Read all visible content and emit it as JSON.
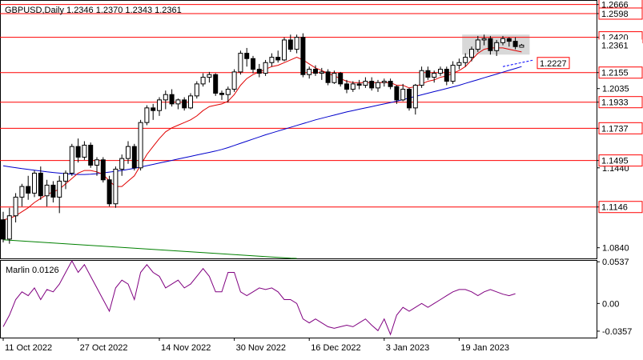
{
  "header": {
    "symbol_line": "GBPUSD,Daily  1.2346 1.2370 1.2343 1.2361",
    "oscillator_label": "Marlin 0.0126"
  },
  "colors": {
    "background": "#ffffff",
    "level_line": "#ff0000",
    "ma_fast": "#e00000",
    "ma_slow": "#0000cc",
    "ma_long": "#008000",
    "oscillator": "#800080",
    "candle_body": "#000000",
    "forecast_line": "#0000ff",
    "price_box": "#c8c8c8"
  },
  "chart_data": [
    {
      "type": "candlestick",
      "symbol": "GBPUSD",
      "timeframe": "Daily",
      "ylim": [
        1.076,
        1.27
      ],
      "y_ticks": [
        1.2666,
        1.2598,
        1.242,
        1.2361,
        1.2155,
        1.2035,
        1.1933,
        1.1737,
        1.1495,
        1.144,
        1.1146,
        1.084
      ],
      "x_labels": [
        "11 Oct 2022",
        "27 Oct 2022",
        "14 Nov 2022",
        "30 Nov 2022",
        "16 Dec 2022",
        "3 Jan 2023",
        "19 Jan 2023"
      ],
      "x_label_index": [
        0,
        12,
        25,
        37,
        49,
        61,
        73
      ],
      "levels": [
        1.2666,
        1.2598,
        1.242,
        1.2155,
        1.1933,
        1.1737,
        1.1495,
        1.1146
      ],
      "last_price": 1.2361,
      "forecast_label": "1.2227",
      "forecast_line": {
        "from_index": 80,
        "from_value": 1.22,
        "to_index": 85,
        "to_value": 1.225
      },
      "candles": [
        [
          1.105,
          1.111,
          1.088,
          1.0905
        ],
        [
          1.0905,
          1.114,
          1.087,
          1.108
        ],
        [
          1.108,
          1.125,
          1.103,
          1.122
        ],
        [
          1.122,
          1.132,
          1.115,
          1.13
        ],
        [
          1.13,
          1.138,
          1.12,
          1.125
        ],
        [
          1.125,
          1.142,
          1.122,
          1.14
        ],
        [
          1.14,
          1.145,
          1.12,
          1.123
        ],
        [
          1.123,
          1.135,
          1.115,
          1.131
        ],
        [
          1.131,
          1.134,
          1.118,
          1.122
        ],
        [
          1.122,
          1.138,
          1.11,
          1.134
        ],
        [
          1.134,
          1.142,
          1.128,
          1.14
        ],
        [
          1.14,
          1.162,
          1.138,
          1.16
        ],
        [
          1.16,
          1.166,
          1.148,
          1.152
        ],
        [
          1.152,
          1.164,
          1.15,
          1.161
        ],
        [
          1.161,
          1.163,
          1.144,
          1.146
        ],
        [
          1.146,
          1.152,
          1.138,
          1.15
        ],
        [
          1.15,
          1.152,
          1.133,
          1.135
        ],
        [
          1.135,
          1.138,
          1.115,
          1.117
        ],
        [
          1.117,
          1.145,
          1.114,
          1.143
        ],
        [
          1.143,
          1.154,
          1.138,
          1.151
        ],
        [
          1.151,
          1.164,
          1.147,
          1.16
        ],
        [
          1.16,
          1.162,
          1.142,
          1.144
        ],
        [
          1.144,
          1.18,
          1.142,
          1.178
        ],
        [
          1.178,
          1.191,
          1.176,
          1.189
        ],
        [
          1.189,
          1.192,
          1.18,
          1.187
        ],
        [
          1.187,
          1.197,
          1.183,
          1.195
        ],
        [
          1.195,
          1.202,
          1.188,
          1.199
        ],
        [
          1.199,
          1.203,
          1.19,
          1.192
        ],
        [
          1.192,
          1.196,
          1.188,
          1.195
        ],
        [
          1.195,
          1.197,
          1.187,
          1.189
        ],
        [
          1.189,
          1.2,
          1.188,
          1.198
        ],
        [
          1.198,
          1.209,
          1.196,
          1.207
        ],
        [
          1.207,
          1.215,
          1.205,
          1.212
        ],
        [
          1.212,
          1.216,
          1.208,
          1.214
        ],
        [
          1.214,
          1.215,
          1.198,
          1.2
        ],
        [
          1.2,
          1.202,
          1.195,
          1.199
        ],
        [
          1.199,
          1.205,
          1.193,
          1.203
        ],
        [
          1.203,
          1.218,
          1.201,
          1.216
        ],
        [
          1.216,
          1.232,
          1.214,
          1.23
        ],
        [
          1.23,
          1.234,
          1.22,
          1.226
        ],
        [
          1.226,
          1.228,
          1.215,
          1.218
        ],
        [
          1.218,
          1.222,
          1.212,
          1.215
        ],
        [
          1.215,
          1.225,
          1.213,
          1.223
        ],
        [
          1.223,
          1.23,
          1.22,
          1.227
        ],
        [
          1.227,
          1.232,
          1.223,
          1.225
        ],
        [
          1.225,
          1.242,
          1.224,
          1.24
        ],
        [
          1.24,
          1.244,
          1.231,
          1.233
        ],
        [
          1.233,
          1.244,
          1.23,
          1.242
        ],
        [
          1.242,
          1.245,
          1.212,
          1.214
        ],
        [
          1.214,
          1.22,
          1.211,
          1.218
        ],
        [
          1.218,
          1.221,
          1.213,
          1.215
        ],
        [
          1.215,
          1.219,
          1.21,
          1.216
        ],
        [
          1.216,
          1.218,
          1.206,
          1.208
        ],
        [
          1.208,
          1.217,
          1.207,
          1.215
        ],
        [
          1.215,
          1.216,
          1.205,
          1.207
        ],
        [
          1.207,
          1.21,
          1.2,
          1.203
        ],
        [
          1.203,
          1.209,
          1.201,
          1.207
        ],
        [
          1.207,
          1.21,
          1.203,
          1.206
        ],
        [
          1.206,
          1.212,
          1.204,
          1.209
        ],
        [
          1.209,
          1.212,
          1.202,
          1.204
        ],
        [
          1.204,
          1.21,
          1.201,
          1.208
        ],
        [
          1.208,
          1.211,
          1.205,
          1.209
        ],
        [
          1.209,
          1.211,
          1.203,
          1.205
        ],
        [
          1.205,
          1.206,
          1.192,
          1.195
        ],
        [
          1.195,
          1.207,
          1.194,
          1.203
        ],
        [
          1.203,
          1.204,
          1.187,
          1.189
        ],
        [
          1.189,
          1.207,
          1.184,
          1.206
        ],
        [
          1.206,
          1.22,
          1.204,
          1.217
        ],
        [
          1.217,
          1.22,
          1.21,
          1.212
        ],
        [
          1.212,
          1.217,
          1.208,
          1.215
        ],
        [
          1.215,
          1.22,
          1.213,
          1.218
        ],
        [
          1.218,
          1.22,
          1.206,
          1.209
        ],
        [
          1.209,
          1.224,
          1.207,
          1.221
        ],
        [
          1.221,
          1.226,
          1.218,
          1.223
        ],
        [
          1.223,
          1.23,
          1.22,
          1.227
        ],
        [
          1.227,
          1.235,
          1.224,
          1.233
        ],
        [
          1.233,
          1.243,
          1.231,
          1.24
        ],
        [
          1.24,
          1.244,
          1.236,
          1.241
        ],
        [
          1.241,
          1.243,
          1.229,
          1.232
        ],
        [
          1.232,
          1.24,
          1.228,
          1.238
        ],
        [
          1.238,
          1.243,
          1.236,
          1.241
        ],
        [
          1.241,
          1.242,
          1.235,
          1.239
        ],
        [
          1.239,
          1.242,
          1.233,
          1.235
        ],
        [
          1.2346,
          1.237,
          1.2343,
          1.2361
        ]
      ],
      "ma_fast": [
        1.105,
        1.106,
        1.108,
        1.111,
        1.114,
        1.118,
        1.121,
        1.124,
        1.126,
        1.128,
        1.132,
        1.136,
        1.14,
        1.142,
        1.142,
        1.141,
        1.139,
        1.134,
        1.13,
        1.13,
        1.134,
        1.138,
        1.146,
        1.154,
        1.16,
        1.166,
        1.171,
        1.174,
        1.176,
        1.178,
        1.18,
        1.183,
        1.187,
        1.19,
        1.191,
        1.192,
        1.194,
        1.199,
        1.206,
        1.211,
        1.214,
        1.216,
        1.218,
        1.22,
        1.221,
        1.223,
        1.225,
        1.227,
        1.225,
        1.222,
        1.219,
        1.217,
        1.215,
        1.213,
        1.211,
        1.209,
        1.208,
        1.208,
        1.208,
        1.208,
        1.208,
        1.208,
        1.208,
        1.206,
        1.206,
        1.204,
        1.205,
        1.207,
        1.209,
        1.21,
        1.212,
        1.213,
        1.215,
        1.217,
        1.22,
        1.225,
        1.23,
        1.233,
        1.234,
        1.234,
        1.234,
        1.233,
        1.232,
        1.231
      ],
      "ma_slow": [
        1.1455,
        1.1448,
        1.1441,
        1.1434,
        1.1428,
        1.1422,
        1.1416,
        1.141,
        1.1405,
        1.14,
        1.1396,
        1.1392,
        1.139,
        1.139,
        1.1392,
        1.1396,
        1.1402,
        1.1408,
        1.1414,
        1.142,
        1.1428,
        1.1436,
        1.1446,
        1.1456,
        1.1466,
        1.1476,
        1.1486,
        1.1496,
        1.1506,
        1.1516,
        1.1526,
        1.1536,
        1.1546,
        1.1556,
        1.1566,
        1.1578,
        1.1592,
        1.1608,
        1.1624,
        1.164,
        1.1656,
        1.1672,
        1.1688,
        1.1702,
        1.1716,
        1.173,
        1.1744,
        1.1758,
        1.1772,
        1.1786,
        1.18,
        1.1812,
        1.1824,
        1.1836,
        1.1848,
        1.186,
        1.187,
        1.188,
        1.189,
        1.19,
        1.191,
        1.192,
        1.193,
        1.194,
        1.1952,
        1.1964,
        1.1976,
        1.1988,
        1.2,
        1.2012,
        1.2024,
        1.2036,
        1.2048,
        1.206,
        1.2074,
        1.2088,
        1.2102,
        1.2116,
        1.213,
        1.2144,
        1.2158,
        1.2172,
        1.2186,
        1.22
      ],
      "ma_long": [
        1.09,
        1.0897,
        1.0894,
        1.0891,
        1.0888,
        1.0885,
        1.0882,
        1.0879,
        1.0876,
        1.0873,
        1.087,
        1.0867,
        1.0864,
        1.0861,
        1.0858,
        1.0855,
        1.0852,
        1.0849,
        1.0846,
        1.0843,
        1.084,
        1.0837,
        1.0834,
        1.0831,
        1.0828,
        1.0825,
        1.0822,
        1.0819,
        1.0816,
        1.0813,
        1.081,
        1.0807,
        1.0804,
        1.0801,
        1.0798,
        1.0795,
        1.0792,
        1.0789,
        1.0786,
        1.0783,
        1.078,
        1.0777,
        1.0774,
        1.0771,
        1.0768,
        1.0765,
        1.0762,
        1.076
      ]
    },
    {
      "type": "line",
      "name": "Marlin",
      "ylim": [
        -0.044,
        0.056
      ],
      "y_ticks": [
        0.0537,
        0.0,
        -0.0357
      ],
      "zero_label": "0.00",
      "values": [
        -0.03,
        -0.015,
        0.005,
        0.015,
        0.01,
        0.02,
        0.005,
        0.018,
        0.015,
        0.025,
        0.04,
        0.055,
        0.04,
        0.05,
        0.035,
        0.02,
        0.005,
        -0.01,
        0.02,
        0.03,
        0.025,
        0.005,
        0.04,
        0.05,
        0.04,
        0.035,
        0.02,
        0.025,
        0.03,
        0.02,
        0.025,
        0.035,
        0.045,
        0.035,
        0.015,
        0.015,
        0.04,
        0.04,
        0.015,
        0.01,
        0.015,
        0.02,
        0.018,
        0.02,
        0.015,
        0.005,
        0.005,
        0.0,
        -0.02,
        -0.025,
        -0.02,
        -0.025,
        -0.03,
        -0.032,
        -0.03,
        -0.028,
        -0.03,
        -0.025,
        -0.02,
        -0.028,
        -0.035,
        -0.02,
        -0.04,
        -0.015,
        -0.005,
        -0.01,
        -0.005,
        0.0,
        -0.005,
        0.0,
        0.005,
        0.01,
        0.015,
        0.018,
        0.018,
        0.015,
        0.01,
        0.015,
        0.018,
        0.015,
        0.012,
        0.01,
        0.0126
      ]
    }
  ]
}
